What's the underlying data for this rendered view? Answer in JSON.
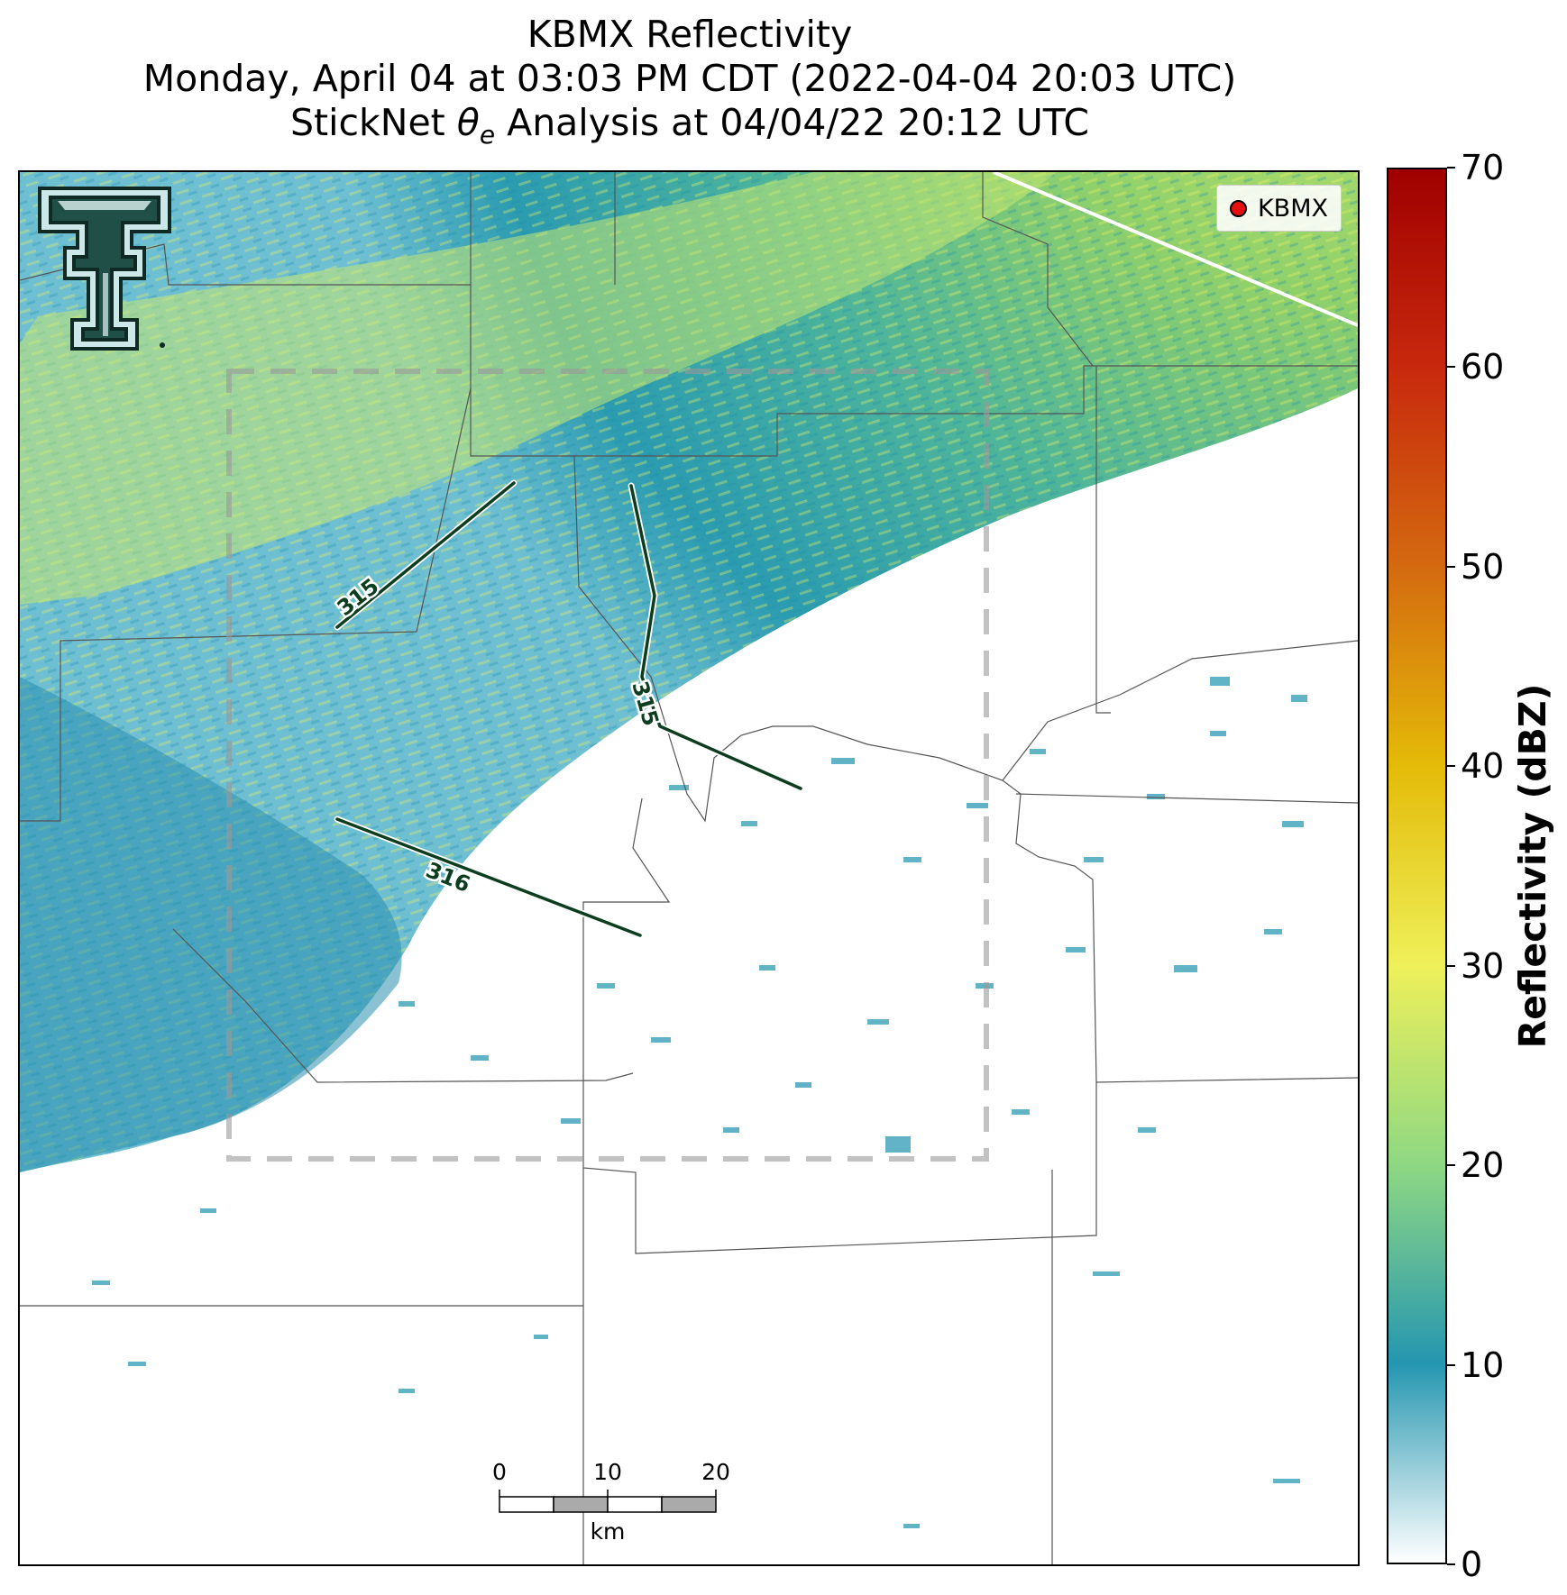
{
  "title": {
    "line1": "KBMX Reflectivity",
    "line2": "Monday, April 04 at 03:03 PM CDT (2022-04-04 20:03 UTC)",
    "line3_prefix": "StickNet ",
    "line3_symbol": "θ",
    "line3_subscript": "e",
    "line3_suffix": " Analysis at 04/04/22 20:12 UTC"
  },
  "legend": {
    "marker_label": "KBMX",
    "marker_color": "#e41010"
  },
  "colorbar": {
    "label": "Reflectivity (dBZ)",
    "min": 0,
    "max": 70,
    "ticks": [
      "0",
      "10",
      "20",
      "30",
      "40",
      "50",
      "60",
      "70"
    ],
    "stops": [
      [
        0,
        "#ffffff"
      ],
      [
        10,
        "#2596b0"
      ],
      [
        20,
        "#8fd883"
      ],
      [
        30,
        "#eef05a"
      ],
      [
        40,
        "#e4bb08"
      ],
      [
        50,
        "#d46a10"
      ],
      [
        60,
        "#c8290d"
      ],
      [
        70,
        "#a00000"
      ]
    ]
  },
  "contours": {
    "labels": [
      "315",
      "315",
      "316"
    ],
    "color": "#0d3d1f"
  },
  "scale_bar": {
    "ticks": [
      "0",
      "10",
      "20"
    ],
    "unit": "km"
  },
  "logo": {
    "name": "Texas Tech Double T"
  }
}
